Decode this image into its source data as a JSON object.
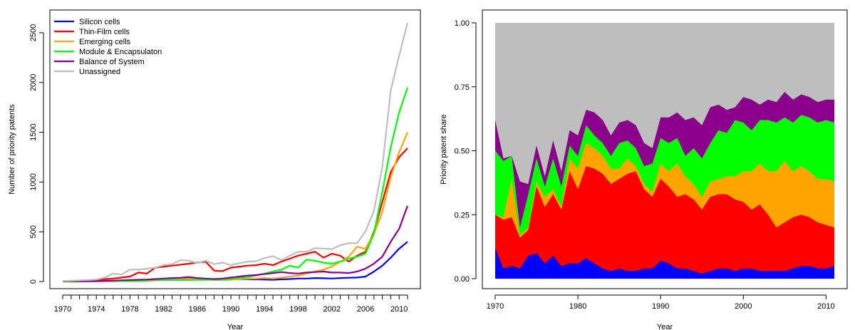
{
  "chart_data": [
    {
      "type": "line",
      "xlabel": "Year",
      "ylabel": "Number of priority patents",
      "xlim": [
        1970,
        2011
      ],
      "ylim": [
        0,
        2600
      ],
      "x_ticks": [
        1970,
        1974,
        1978,
        1982,
        1986,
        1990,
        1994,
        1998,
        2002,
        2006,
        2010
      ],
      "y_ticks": [
        0,
        500,
        1000,
        1500,
        2000,
        2500
      ],
      "legend_position": "top-left",
      "grid": false,
      "x": [
        1970,
        1971,
        1972,
        1973,
        1974,
        1975,
        1976,
        1977,
        1978,
        1979,
        1980,
        1981,
        1982,
        1983,
        1984,
        1985,
        1986,
        1987,
        1988,
        1989,
        1990,
        1991,
        1992,
        1993,
        1994,
        1995,
        1996,
        1997,
        1998,
        1999,
        2000,
        2001,
        2002,
        2003,
        2004,
        2005,
        2006,
        2007,
        2008,
        2009,
        2010,
        2011
      ],
      "series": [
        {
          "name": "Silicon cells",
          "color": "#0000ff",
          "values": [
            2,
            2,
            3,
            3,
            3,
            5,
            5,
            8,
            10,
            12,
            15,
            18,
            20,
            22,
            25,
            30,
            28,
            25,
            22,
            24,
            28,
            25,
            22,
            22,
            20,
            18,
            22,
            25,
            30,
            30,
            35,
            33,
            30,
            35,
            38,
            40,
            50,
            100,
            160,
            240,
            330,
            400
          ]
        },
        {
          "name": "Thin-Film cells",
          "color": "#ff0000",
          "values": [
            5,
            6,
            8,
            10,
            15,
            25,
            30,
            40,
            50,
            90,
            80,
            140,
            150,
            160,
            170,
            180,
            190,
            200,
            110,
            105,
            140,
            150,
            160,
            165,
            180,
            165,
            200,
            230,
            260,
            280,
            300,
            240,
            280,
            260,
            200,
            260,
            300,
            500,
            800,
            1100,
            1250,
            1340
          ]
        },
        {
          "name": "Emerging cells",
          "color": "#ffa500",
          "values": [
            0,
            0,
            0,
            2,
            2,
            4,
            5,
            5,
            8,
            8,
            10,
            15,
            20,
            22,
            25,
            28,
            25,
            20,
            15,
            15,
            18,
            25,
            28,
            30,
            35,
            30,
            40,
            50,
            60,
            80,
            100,
            120,
            150,
            200,
            250,
            350,
            330,
            480,
            700,
            1050,
            1300,
            1500
          ]
        },
        {
          "name": "Module & Encapsulaton",
          "color": "#00ff00",
          "values": [
            0,
            0,
            0,
            0,
            2,
            2,
            3,
            5,
            5,
            8,
            10,
            12,
            15,
            15,
            15,
            15,
            18,
            18,
            20,
            22,
            25,
            35,
            45,
            60,
            80,
            100,
            120,
            160,
            140,
            220,
            210,
            190,
            180,
            200,
            230,
            250,
            280,
            480,
            900,
            1350,
            1700,
            1950
          ]
        },
        {
          "name": "Balance of System",
          "color": "#8b008b",
          "values": [
            2,
            2,
            3,
            4,
            5,
            8,
            10,
            12,
            15,
            18,
            20,
            25,
            30,
            35,
            38,
            45,
            35,
            30,
            25,
            30,
            40,
            50,
            60,
            65,
            75,
            85,
            95,
            85,
            80,
            90,
            95,
            100,
            90,
            90,
            85,
            100,
            130,
            180,
            250,
            400,
            530,
            760
          ]
        },
        {
          "name": "Unassigned",
          "color": "#bebebe",
          "values": [
            5,
            8,
            12,
            15,
            20,
            40,
            80,
            70,
            120,
            120,
            130,
            140,
            165,
            175,
            215,
            210,
            185,
            210,
            175,
            190,
            165,
            185,
            200,
            205,
            235,
            255,
            215,
            260,
            300,
            300,
            335,
            330,
            325,
            365,
            385,
            385,
            505,
            710,
            1150,
            1920,
            2270,
            2600
          ]
        }
      ]
    },
    {
      "type": "area",
      "stacked": true,
      "xlabel": "Year",
      "ylabel": "Priority patent share",
      "xlim": [
        1970,
        2011
      ],
      "ylim": [
        0,
        1
      ],
      "x_ticks": [
        1970,
        1980,
        1990,
        2000,
        2010
      ],
      "y_ticks": [
        "0.00",
        "0.25",
        "0.50",
        "0.75",
        "1.00"
      ],
      "grid": false,
      "x": [
        1970,
        1971,
        1972,
        1973,
        1974,
        1975,
        1976,
        1977,
        1978,
        1979,
        1980,
        1981,
        1982,
        1983,
        1984,
        1985,
        1986,
        1987,
        1988,
        1989,
        1990,
        1991,
        1992,
        1993,
        1994,
        1995,
        1996,
        1997,
        1998,
        1999,
        2000,
        2001,
        2002,
        2003,
        2004,
        2005,
        2006,
        2007,
        2008,
        2009,
        2010,
        2011
      ],
      "cumulative": [
        {
          "color": "#0000ff",
          "values": [
            0.12,
            0.04,
            0.05,
            0.04,
            0.09,
            0.1,
            0.06,
            0.09,
            0.05,
            0.06,
            0.06,
            0.08,
            0.06,
            0.04,
            0.03,
            0.04,
            0.03,
            0.03,
            0.04,
            0.04,
            0.07,
            0.06,
            0.04,
            0.04,
            0.03,
            0.02,
            0.03,
            0.04,
            0.04,
            0.03,
            0.04,
            0.04,
            0.03,
            0.03,
            0.03,
            0.03,
            0.04,
            0.05,
            0.05,
            0.04,
            0.04,
            0.05
          ]
        },
        {
          "color": "#ff0000",
          "values": [
            0.25,
            0.23,
            0.24,
            0.16,
            0.19,
            0.36,
            0.28,
            0.33,
            0.27,
            0.42,
            0.35,
            0.44,
            0.43,
            0.41,
            0.37,
            0.39,
            0.41,
            0.42,
            0.35,
            0.32,
            0.39,
            0.36,
            0.32,
            0.33,
            0.31,
            0.27,
            0.32,
            0.33,
            0.33,
            0.31,
            0.3,
            0.27,
            0.29,
            0.25,
            0.2,
            0.22,
            0.24,
            0.25,
            0.24,
            0.22,
            0.21,
            0.2
          ]
        },
        {
          "color": "#ffa500",
          "values": [
            0.25,
            0.24,
            0.39,
            0.17,
            0.2,
            0.38,
            0.32,
            0.35,
            0.28,
            0.47,
            0.43,
            0.53,
            0.51,
            0.48,
            0.43,
            0.43,
            0.47,
            0.44,
            0.37,
            0.34,
            0.45,
            0.42,
            0.45,
            0.4,
            0.37,
            0.32,
            0.38,
            0.39,
            0.4,
            0.4,
            0.42,
            0.42,
            0.45,
            0.42,
            0.42,
            0.46,
            0.42,
            0.44,
            0.42,
            0.39,
            0.39,
            0.38
          ]
        },
        {
          "color": "#00ff00",
          "values": [
            0.5,
            0.46,
            0.48,
            0.2,
            0.33,
            0.47,
            0.36,
            0.47,
            0.36,
            0.52,
            0.48,
            0.6,
            0.56,
            0.53,
            0.48,
            0.53,
            0.54,
            0.51,
            0.44,
            0.45,
            0.55,
            0.53,
            0.55,
            0.48,
            0.51,
            0.47,
            0.53,
            0.58,
            0.57,
            0.62,
            0.61,
            0.58,
            0.62,
            0.62,
            0.61,
            0.63,
            0.61,
            0.64,
            0.63,
            0.61,
            0.62,
            0.61
          ]
        },
        {
          "color": "#8b008b",
          "values": [
            0.62,
            0.47,
            0.48,
            0.38,
            0.37,
            0.52,
            0.4,
            0.54,
            0.42,
            0.58,
            0.56,
            0.66,
            0.65,
            0.62,
            0.56,
            0.61,
            0.62,
            0.6,
            0.53,
            0.51,
            0.63,
            0.63,
            0.65,
            0.62,
            0.63,
            0.6,
            0.67,
            0.68,
            0.66,
            0.67,
            0.71,
            0.7,
            0.68,
            0.7,
            0.69,
            0.73,
            0.7,
            0.72,
            0.71,
            0.69,
            0.7,
            0.7
          ]
        },
        {
          "color": "#bebebe",
          "values": [
            1,
            1,
            1,
            1,
            1,
            1,
            1,
            1,
            1,
            1,
            1,
            1,
            1,
            1,
            1,
            1,
            1,
            1,
            1,
            1,
            1,
            1,
            1,
            1,
            1,
            1,
            1,
            1,
            1,
            1,
            1,
            1,
            1,
            1,
            1,
            1,
            1,
            1,
            1,
            1,
            1,
            1
          ]
        }
      ]
    }
  ]
}
